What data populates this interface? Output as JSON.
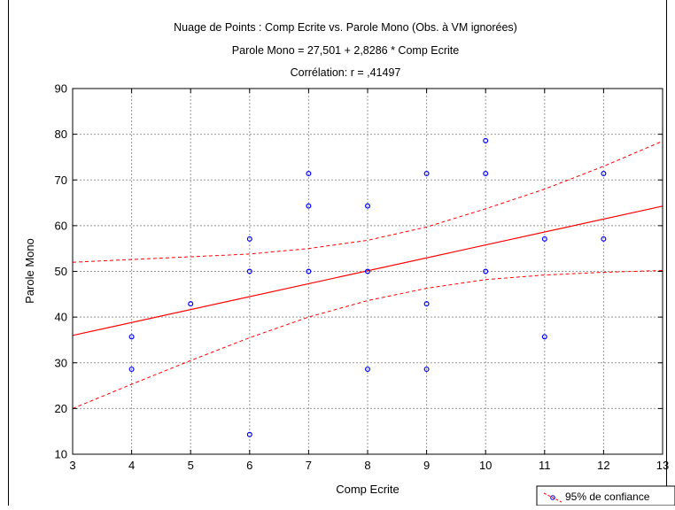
{
  "chart_data": {
    "type": "scatter",
    "title_lines": [
      "Nuage de Points : Comp Ecrite vs. Parole Mono (Obs. à VM ignorées)",
      "Parole Mono = 27,501 + 2,8286 * Comp Ecrite",
      "Corrélation: r = ,41497"
    ],
    "xlabel": "Comp Ecrite",
    "ylabel": "Parole Mono",
    "xlim": [
      3,
      13
    ],
    "ylim": [
      10,
      90
    ],
    "x_ticks": [
      "3",
      "4",
      "5",
      "6",
      "7",
      "8",
      "9",
      "10",
      "11",
      "12",
      "13"
    ],
    "y_ticks": [
      "10",
      "20",
      "30",
      "40",
      "50",
      "60",
      "70",
      "80",
      "90"
    ],
    "grid": true,
    "legend": {
      "label": "95% de confiance",
      "position": "bottom-right"
    },
    "regression": {
      "intercept": 27.501,
      "slope": 2.8286
    },
    "confidence_band": {
      "x": [
        3,
        4,
        5,
        6,
        7,
        8,
        9,
        10,
        11,
        12,
        13
      ],
      "upper": [
        52,
        52.6,
        53.2,
        53.8,
        55,
        56.8,
        59.7,
        63.7,
        68,
        73,
        78.5
      ],
      "lower": [
        20,
        25.3,
        30.5,
        35.5,
        40,
        43.6,
        46.3,
        48.2,
        49.2,
        49.8,
        50.2
      ]
    },
    "points": [
      {
        "x": 4,
        "y": 35.7
      },
      {
        "x": 4,
        "y": 28.6
      },
      {
        "x": 5,
        "y": 42.9
      },
      {
        "x": 6,
        "y": 57.1
      },
      {
        "x": 6,
        "y": 50
      },
      {
        "x": 6,
        "y": 14.3
      },
      {
        "x": 7,
        "y": 71.4
      },
      {
        "x": 7,
        "y": 64.3
      },
      {
        "x": 7,
        "y": 50
      },
      {
        "x": 8,
        "y": 64.3
      },
      {
        "x": 8,
        "y": 50
      },
      {
        "x": 8,
        "y": 28.6
      },
      {
        "x": 9,
        "y": 71.4
      },
      {
        "x": 9,
        "y": 42.9
      },
      {
        "x": 9,
        "y": 28.6
      },
      {
        "x": 10,
        "y": 78.6
      },
      {
        "x": 10,
        "y": 71.4
      },
      {
        "x": 10,
        "y": 50
      },
      {
        "x": 11,
        "y": 57.1
      },
      {
        "x": 11,
        "y": 35.7
      },
      {
        "x": 12,
        "y": 71.4
      },
      {
        "x": 12,
        "y": 57.1
      }
    ],
    "colors": {
      "points": "#0000ff",
      "fit": "#ff0000",
      "grid": "#999999"
    }
  }
}
